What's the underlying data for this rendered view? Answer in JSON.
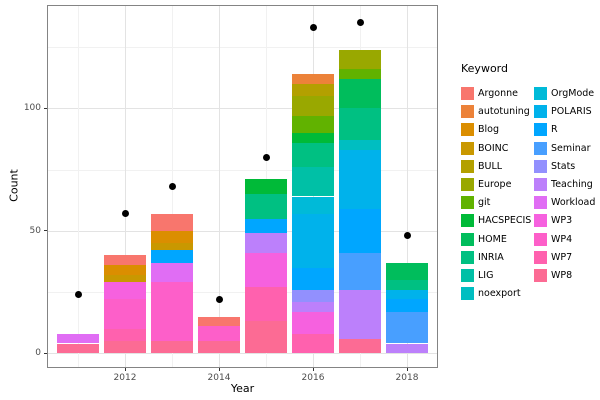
{
  "chart_data": {
    "type": "bar",
    "stacked": true,
    "title": "",
    "xlabel": "Year",
    "ylabel": "Count",
    "legend_title": "Keyword",
    "legend_position": "right",
    "grid": true,
    "x_ticks": [
      2012,
      2014,
      2016,
      2018
    ],
    "y_ticks": [
      0,
      50,
      100
    ],
    "y_minor_ticks": [
      25,
      75,
      125
    ],
    "ylim": [
      -6,
      142
    ],
    "years": [
      2011,
      2012,
      2013,
      2014,
      2015,
      2016,
      2017,
      2018
    ],
    "keywords": [
      {
        "label": "Argonne",
        "color": "#F8766D"
      },
      {
        "label": "autotuning",
        "color": "#EC8239"
      },
      {
        "label": "Blog",
        "color": "#DB8E00"
      },
      {
        "label": "BOINC",
        "color": "#C99800"
      },
      {
        "label": "BULL",
        "color": "#B3A000"
      },
      {
        "label": "Europe",
        "color": "#99A800"
      },
      {
        "label": "git",
        "color": "#61B200"
      },
      {
        "label": "HACSPECIS",
        "color": "#00BA38"
      },
      {
        "label": "HOME",
        "color": "#00BD5C"
      },
      {
        "label": "INRIA",
        "color": "#00C082"
      },
      {
        "label": "LIG",
        "color": "#00C0A6"
      },
      {
        "label": "noexport",
        "color": "#00BEC1"
      },
      {
        "label": "OrgMode",
        "color": "#00BAD8"
      },
      {
        "label": "POLARIS",
        "color": "#00B2EB"
      },
      {
        "label": "R",
        "color": "#00A6FF"
      },
      {
        "label": "Seminar",
        "color": "#489FFF"
      },
      {
        "label": "Stats",
        "color": "#9290FE"
      },
      {
        "label": "Teaching",
        "color": "#BC80FB"
      },
      {
        "label": "Workload",
        "color": "#E06DF4"
      },
      {
        "label": "WP3",
        "color": "#F661DF"
      },
      {
        "label": "WP4",
        "color": "#FD5FC9"
      },
      {
        "label": "WP7",
        "color": "#FF61AE"
      },
      {
        "label": "WP8",
        "color": "#FC6B94"
      }
    ],
    "bars": [
      {
        "year": 2011,
        "total": 8,
        "segments_top_to_bottom": [
          {
            "keyword": "Workload",
            "value": 4
          },
          {
            "keyword": "WP8",
            "value": 4
          }
        ]
      },
      {
        "year": 2012,
        "total": 40,
        "segments_top_to_bottom": [
          {
            "keyword": "Argonne",
            "value": 4
          },
          {
            "keyword": "Blog",
            "value": 4
          },
          {
            "keyword": "BOINC",
            "value": 3
          },
          {
            "keyword": "WP3",
            "value": 7
          },
          {
            "keyword": "WP4",
            "value": 12
          },
          {
            "keyword": "WP7",
            "value": 5
          },
          {
            "keyword": "WP8",
            "value": 5
          }
        ]
      },
      {
        "year": 2013,
        "total": 57,
        "segments_top_to_bottom": [
          {
            "keyword": "Argonne",
            "value": 7
          },
          {
            "keyword": "Blog",
            "value": 5
          },
          {
            "keyword": "BOINC",
            "value": 3
          },
          {
            "keyword": "R",
            "value": 5
          },
          {
            "keyword": "Workload",
            "value": 8
          },
          {
            "keyword": "WP4",
            "value": 24
          },
          {
            "keyword": "WP8",
            "value": 5
          }
        ]
      },
      {
        "year": 2014,
        "total": 15,
        "segments_top_to_bottom": [
          {
            "keyword": "Argonne",
            "value": 4
          },
          {
            "keyword": "WP4",
            "value": 6
          },
          {
            "keyword": "WP8",
            "value": 5
          }
        ]
      },
      {
        "year": 2015,
        "total": 71,
        "segments_top_to_bottom": [
          {
            "keyword": "HACSPECIS",
            "value": 6
          },
          {
            "keyword": "INRIA",
            "value": 10
          },
          {
            "keyword": "R",
            "value": 6
          },
          {
            "keyword": "Teaching",
            "value": 8
          },
          {
            "keyword": "WP3",
            "value": 14
          },
          {
            "keyword": "WP7",
            "value": 14
          },
          {
            "keyword": "WP8",
            "value": 13
          }
        ]
      },
      {
        "year": 2016,
        "total": 114,
        "segments_top_to_bottom": [
          {
            "keyword": "autotuning",
            "value": 4
          },
          {
            "keyword": "BULL",
            "value": 5
          },
          {
            "keyword": "Europe",
            "value": 8
          },
          {
            "keyword": "git",
            "value": 7
          },
          {
            "keyword": "HACSPECIS",
            "value": 4
          },
          {
            "keyword": "INRIA",
            "value": 10
          },
          {
            "keyword": "LIG",
            "value": 12
          },
          {
            "keyword": "OrgMode",
            "value": 7
          },
          {
            "keyword": "POLARIS",
            "value": 22
          },
          {
            "keyword": "R",
            "value": 9
          },
          {
            "keyword": "Stats",
            "value": 5
          },
          {
            "keyword": "Teaching",
            "value": 4
          },
          {
            "keyword": "WP3",
            "value": 9
          },
          {
            "keyword": "WP7",
            "value": 8
          }
        ]
      },
      {
        "year": 2017,
        "total": 124,
        "segments_top_to_bottom": [
          {
            "keyword": "Europe",
            "value": 8
          },
          {
            "keyword": "git",
            "value": 4
          },
          {
            "keyword": "HOME",
            "value": 12
          },
          {
            "keyword": "INRIA",
            "value": 13
          },
          {
            "keyword": "noexport",
            "value": 4
          },
          {
            "keyword": "POLARIS",
            "value": 24
          },
          {
            "keyword": "R",
            "value": 18
          },
          {
            "keyword": "Seminar",
            "value": 15
          },
          {
            "keyword": "Teaching",
            "value": 20
          },
          {
            "keyword": "WP8",
            "value": 6
          }
        ]
      },
      {
        "year": 2018,
        "total": 37,
        "segments_top_to_bottom": [
          {
            "keyword": "HOME",
            "value": 7
          },
          {
            "keyword": "INRIA",
            "value": 4
          },
          {
            "keyword": "POLARIS",
            "value": 4
          },
          {
            "keyword": "R",
            "value": 5
          },
          {
            "keyword": "Seminar",
            "value": 13
          },
          {
            "keyword": "Teaching",
            "value": 4
          }
        ]
      }
    ],
    "points": [
      {
        "year": 2011,
        "value": 24
      },
      {
        "year": 2012,
        "value": 57
      },
      {
        "year": 2013,
        "value": 68
      },
      {
        "year": 2014,
        "value": 22
      },
      {
        "year": 2015,
        "value": 80
      },
      {
        "year": 2016,
        "value": 133
      },
      {
        "year": 2017,
        "value": 135
      },
      {
        "year": 2018,
        "value": 48
      }
    ]
  }
}
